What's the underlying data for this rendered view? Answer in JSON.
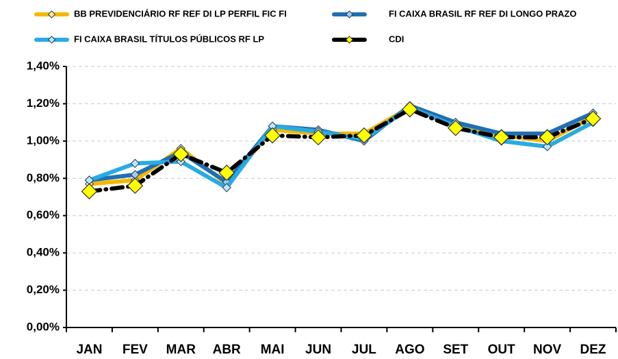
{
  "chart_data": {
    "type": "line",
    "categories": [
      "JAN",
      "FEV",
      "MAR",
      "ABR",
      "MAI",
      "JUN",
      "JUL",
      "AGO",
      "SET",
      "OUT",
      "NOV",
      "DEZ"
    ],
    "series": [
      {
        "name": "BB PREVIDENCIÁRIO RF REF DI LP PERFIL FIC FI",
        "color": "#f5b800",
        "marker_color": "#fde9a0",
        "values": [
          0.77,
          0.79,
          0.96,
          0.77,
          1.06,
          1.04,
          1.04,
          1.18,
          1.09,
          1.03,
          1.0,
          1.13
        ]
      },
      {
        "name": "FI CAIXA BRASIL RF REF DI LONGO PRAZO",
        "color": "#1f6fb5",
        "marker_color": "#a9c8ec",
        "values": [
          0.79,
          0.82,
          0.94,
          0.78,
          1.08,
          1.06,
          1.0,
          1.19,
          1.1,
          1.04,
          1.04,
          1.15
        ]
      },
      {
        "name": "FI CAIXA BRASIL TÍTULOS PÚBLICOS RF LP",
        "color": "#29abe2",
        "marker_color": "#bfe6f7",
        "values": [
          0.79,
          0.88,
          0.89,
          0.75,
          1.08,
          1.05,
          1.01,
          1.18,
          1.08,
          1.0,
          0.97,
          1.1
        ]
      },
      {
        "name": "CDI",
        "color": "#000000",
        "marker_color": "#ffff00",
        "values": [
          0.73,
          0.76,
          0.93,
          0.83,
          1.03,
          1.02,
          1.03,
          1.17,
          1.07,
          1.02,
          1.02,
          1.12
        ]
      }
    ],
    "ylim": [
      0,
      1.4
    ],
    "yticks": [
      {
        "value": 0,
        "label": "0,00%"
      },
      {
        "value": 0.2,
        "label": "0,20%"
      },
      {
        "value": 0.4,
        "label": "0,40%"
      },
      {
        "value": 0.6,
        "label": "0,60%"
      },
      {
        "value": 0.8,
        "label": "0,80%"
      },
      {
        "value": 1.0,
        "label": "1,00%"
      },
      {
        "value": 1.2,
        "label": "1,20%"
      },
      {
        "value": 1.4,
        "label": "1,40%"
      }
    ],
    "grid": true
  }
}
